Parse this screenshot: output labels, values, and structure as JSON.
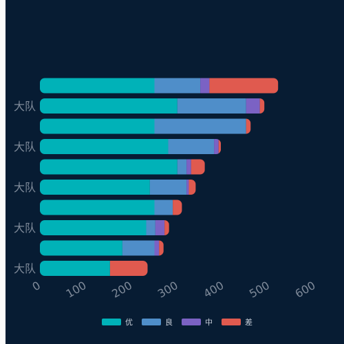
{
  "chart_data": {
    "type": "bar",
    "orientation": "horizontal",
    "stacked": true,
    "categories": [
      "大队",
      "",
      "大队",
      "",
      "大队",
      "",
      "大队",
      "",
      "大队",
      ""
    ],
    "series": [
      {
        "name": "优",
        "color": "#00b2b8",
        "values": [
          153,
          180,
          232,
          250,
          240,
          300,
          280,
          250,
          300,
          250
        ]
      },
      {
        "name": "良",
        "color": "#4f8ec9",
        "values": [
          0,
          70,
          20,
          40,
          80,
          20,
          100,
          200,
          150,
          100
        ]
      },
      {
        "name": "中",
        "color": "#7b62c4",
        "values": [
          0,
          10,
          20,
          0,
          5,
          10,
          10,
          0,
          30,
          20
        ]
      },
      {
        "name": "差",
        "color": "#e05a4f",
        "values": [
          82,
          10,
          10,
          20,
          15,
          30,
          5,
          10,
          10,
          150
        ]
      }
    ],
    "xlim": [
      0,
      600
    ],
    "x_ticks": [
      "0",
      "100",
      "200",
      "300",
      "400",
      "500",
      "600"
    ],
    "grid": false,
    "legend_position": "bottom-center"
  }
}
